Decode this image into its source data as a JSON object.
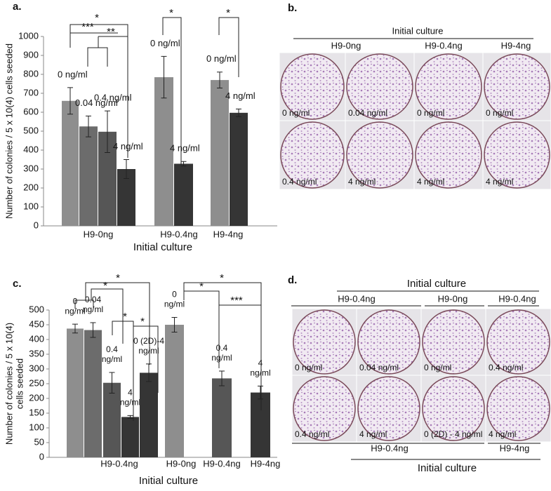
{
  "chart_data": [
    {
      "type": "bar",
      "label": "a.",
      "ylabel": "Number of colonies / 5 x 10(4) cells seeded",
      "xlabel": "Initial culture",
      "ylim": [
        0,
        1000
      ],
      "yticks": [
        0,
        100,
        200,
        300,
        400,
        500,
        600,
        700,
        800,
        900,
        1000
      ],
      "groups": [
        {
          "name": "H9-0ng",
          "bars": [
            {
              "label": "0 ng/ml",
              "value": 660,
              "error": 70,
              "color": "#8e8e8e"
            },
            {
              "label": "0.04 ng/ml",
              "value": 525,
              "error": 55,
              "color": "#6c6c6c"
            },
            {
              "label": "0.4 ng/ml",
              "value": 497,
              "error": 110,
              "color": "#565656"
            },
            {
              "label": "4 ng/ml",
              "value": 300,
              "error": 50,
              "color": "#353535"
            }
          ]
        },
        {
          "name": "H9-0.4ng",
          "bars": [
            {
              "label": "0 ng/ml",
              "value": 785,
              "error": 110,
              "color": "#8e8e8e"
            },
            {
              "label": "4 ng/ml",
              "value": 328,
              "error": 12,
              "color": "#353535"
            }
          ]
        },
        {
          "name": "H9-4ng",
          "bars": [
            {
              "label": "0 ng/ml",
              "value": 770,
              "error": 42,
              "color": "#8e8e8e"
            },
            {
              "label": "4 ng/ml",
              "value": 597,
              "error": 20,
              "color": "#353535"
            }
          ]
        }
      ],
      "annotations": [
        "*",
        "***",
        "**",
        "*",
        "*"
      ]
    },
    {
      "type": "bar",
      "label": "c.",
      "ylabel": [
        "Number of colonies / 5 x 10(4)",
        "cells seeded"
      ],
      "xlabel": "Initial culture",
      "ylim": [
        0,
        500
      ],
      "yticks": [
        0,
        50,
        100,
        150,
        200,
        250,
        300,
        350,
        400,
        450,
        500
      ],
      "groups": [
        {
          "name": "H9-0.4ng",
          "bars": [
            {
              "label": [
                "0",
                "ng/ml"
              ],
              "value": 437,
              "error": 15,
              "color": "#8e8e8e"
            },
            {
              "label": [
                "0.04",
                "ng/ml"
              ],
              "value": 432,
              "error": 25,
              "color": "#6c6c6c"
            },
            {
              "label": [
                "0.4",
                "ng/ml"
              ],
              "value": 253,
              "error": 35,
              "color": "#565656"
            },
            {
              "label": [
                "4",
                "ng/ml"
              ],
              "value": 137,
              "error": 5,
              "color": "#353535"
            },
            {
              "label": [
                "0 (2D)-4",
                "ng/ml"
              ],
              "value": 287,
              "error": 30,
              "color": "#353535"
            }
          ]
        },
        {
          "name": "H9-0ng",
          "bars": [
            {
              "label": [
                "0",
                "ng/ml"
              ],
              "value": 450,
              "error": 25,
              "color": "#8e8e8e"
            }
          ]
        },
        {
          "name": "H9-0.4ng",
          "bars": [
            {
              "label": [
                "0.4",
                "ng/ml"
              ],
              "value": 268,
              "error": 25,
              "color": "#565656"
            }
          ]
        },
        {
          "name": "H9-4ng",
          "bars": [
            {
              "label": [
                "4",
                "ng/ml"
              ],
              "value": 220,
              "error": 22,
              "color": "#353535"
            }
          ]
        }
      ],
      "annotations": [
        "*",
        "*",
        "*",
        "*",
        "*",
        "*",
        "***"
      ]
    }
  ],
  "photo_panels": [
    {
      "label": "b.",
      "header": "Initial culture",
      "subheaders": [
        "H9-0ng",
        "H9-0.4ng",
        "H9-4ng"
      ],
      "rows": [
        [
          "0 ng/ml",
          "0.04 ng/ml",
          "0 ng/ml",
          "0 ng/ml"
        ],
        [
          "0.4 ng/ml",
          "4 ng/ml",
          "4 ng/ml",
          "4 ng/ml"
        ]
      ]
    },
    {
      "label": "d.",
      "header": "Initial culture",
      "subheaders": [
        "H9-0.4ng",
        "H9-0ng",
        "H9-0.4ng"
      ],
      "rows": [
        [
          "0 ng/ml",
          "0.04 ng/ml",
          "0 ng/ml",
          "0.4 ng/ml"
        ],
        [
          "0.4 ng/ml",
          "4 ng/ml",
          "0 (2D) - 4 ng/ml",
          "4 ng/ml"
        ]
      ],
      "footer_groups": [
        "H9-0.4ng",
        "H9-4ng"
      ],
      "footer": "Initial culture"
    }
  ]
}
